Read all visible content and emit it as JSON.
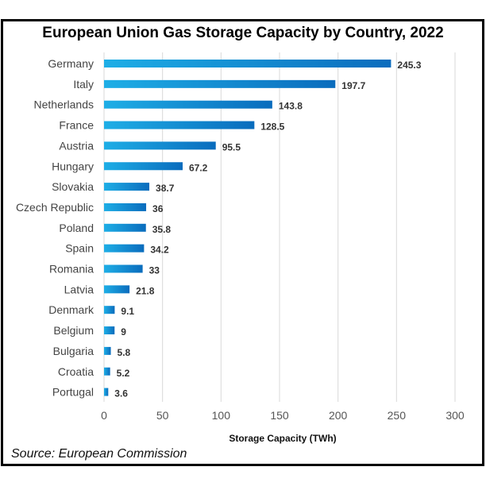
{
  "chart_data": {
    "type": "bar",
    "orientation": "horizontal",
    "title": "European Union Gas Storage Capacity by Country, 2022",
    "xlabel": "Storage Capacity (TWh)",
    "ylabel": "",
    "xlim": [
      0,
      300
    ],
    "xticks": [
      0,
      50,
      100,
      150,
      200,
      250,
      300
    ],
    "grid": true,
    "categories": [
      "Germany",
      "Italy",
      "Netherlands",
      "France",
      "Austria",
      "Hungary",
      "Slovakia",
      "Czech Republic",
      "Poland",
      "Spain",
      "Romania",
      "Latvia",
      "Denmark",
      "Belgium",
      "Bulgaria",
      "Croatia",
      "Portugal"
    ],
    "values": [
      245.3,
      197.7,
      143.8,
      128.5,
      95.5,
      67.2,
      38.7,
      36,
      35.8,
      34.2,
      33,
      21.8,
      9.1,
      9,
      5.8,
      5.2,
      3.6
    ],
    "data_labels": [
      "245.3",
      "197.7",
      "143.8",
      "128.5",
      "95.5",
      "67.2",
      "38.7",
      "36",
      "35.8",
      "34.2",
      "33",
      "21.8",
      "9.1",
      "9",
      "5.8",
      "5.2",
      "3.6"
    ],
    "colors": {
      "bar_start": "#1eaee6",
      "bar_end": "#0a6cbd",
      "grid": "#d9d9d9"
    }
  },
  "source": "Source: European Commission"
}
